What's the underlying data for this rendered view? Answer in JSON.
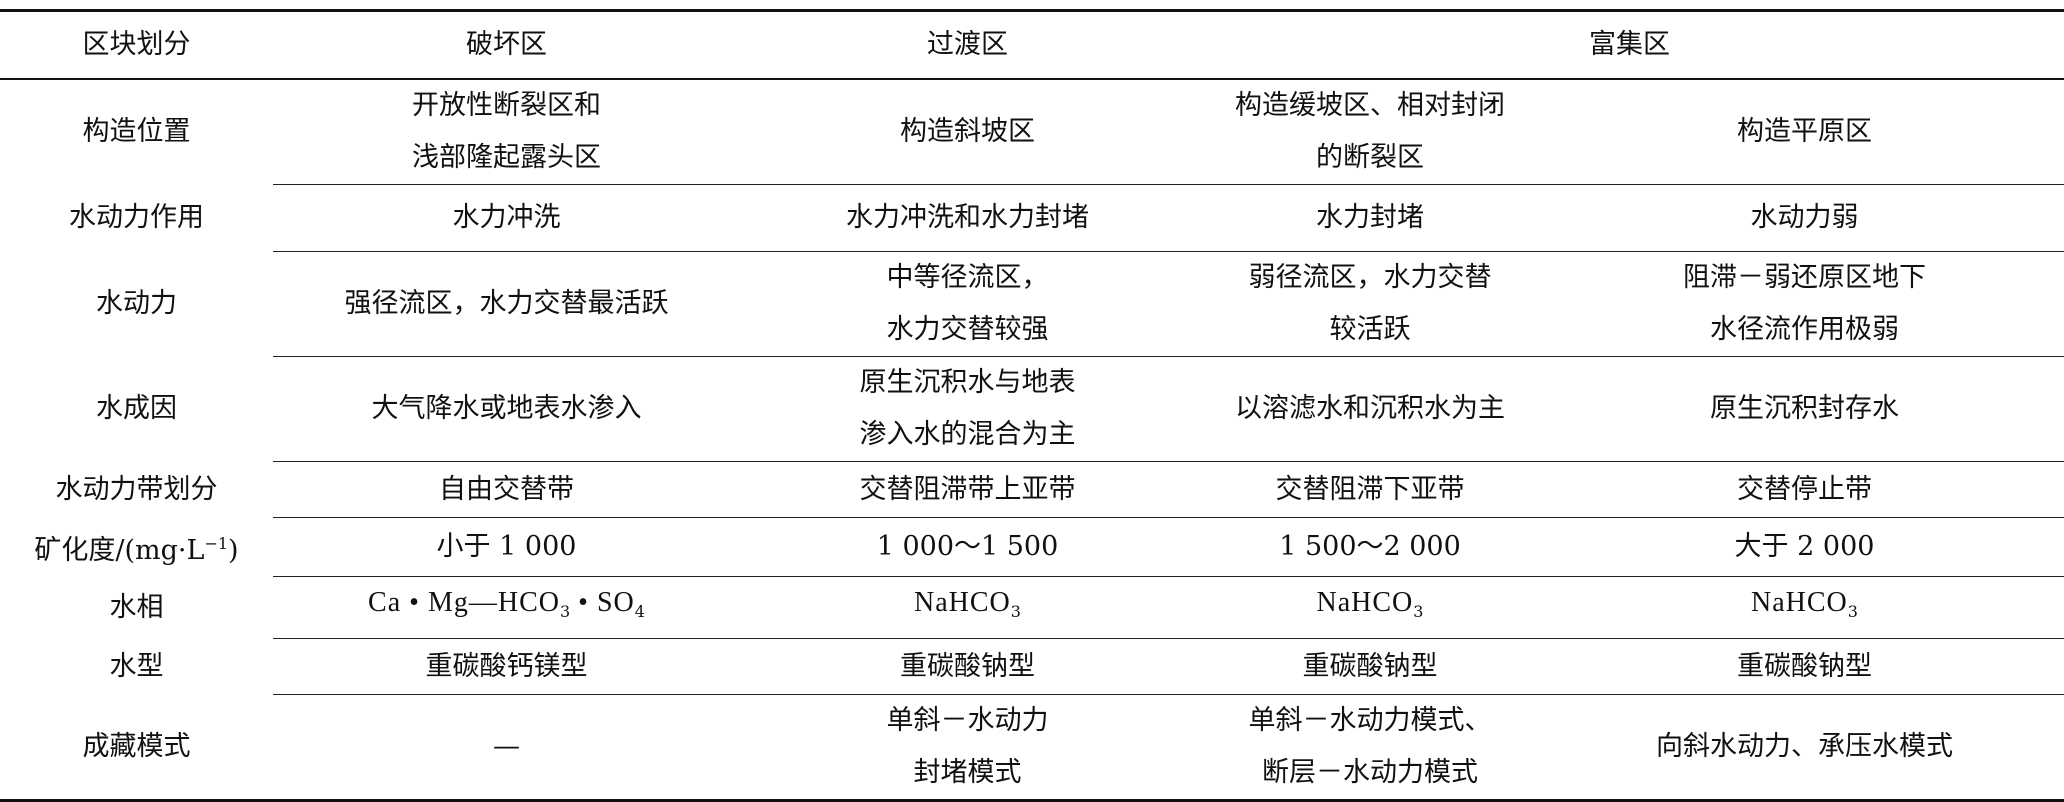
{
  "header": [
    "区块划分",
    "破坏区",
    "过渡区",
    "富集区"
  ],
  "rows": [
    {
      "label": "构造位置",
      "cells": [
        [
          "开放性断裂区和",
          "浅部隆起露头区"
        ],
        [
          "构造斜坡区"
        ],
        [
          "构造缓坡区、相对封闭",
          "的断裂区"
        ],
        [
          "构造平原区"
        ]
      ]
    },
    {
      "label": "水动力作用",
      "cells": [
        [
          "水力冲洗"
        ],
        [
          "水力冲洗和水力封堵"
        ],
        [
          "水力封堵"
        ],
        [
          "水动力弱"
        ]
      ]
    },
    {
      "label": "水动力",
      "cells": [
        [
          "强径流区，水力交替最活跃"
        ],
        [
          "中等径流区，",
          "水力交替较强"
        ],
        [
          "弱径流区，水力交替",
          "较活跃"
        ],
        [
          "阻滞－弱还原区地下",
          "水径流作用极弱"
        ]
      ]
    },
    {
      "label": "水成因",
      "cells": [
        [
          "大气降水或地表水渗入"
        ],
        [
          "原生沉积水与地表",
          "渗入水的混合为主"
        ],
        [
          "以溶滤水和沉积水为主"
        ],
        [
          "原生沉积封存水"
        ]
      ]
    },
    {
      "label": "水动力带划分",
      "cells": [
        [
          "自由交替带"
        ],
        [
          "交替阻滞带上亚带"
        ],
        [
          "交替阻滞下亚带"
        ],
        [
          "交替停止带"
        ]
      ]
    },
    {
      "label": "矿化度/(mg·L⁻¹)",
      "label_parts": {
        "pre": "矿化度/(mg·L",
        "sup": "−1",
        "post": ")"
      },
      "cells": [
        [
          "小于 1 000"
        ],
        [
          "1 000～1 500"
        ],
        [
          "1 500～2 000"
        ],
        [
          "大于 2 000"
        ]
      ]
    },
    {
      "label": "水相",
      "cells": [
        [
          "Ca·Mg—HCO₃·SO₄"
        ],
        [
          "NaHCO₃"
        ],
        [
          "NaHCO₃"
        ],
        [
          "NaHCO₃"
        ]
      ],
      "cell_parts": [
        [
          {
            "t": "Ca • Mg—HCO"
          },
          {
            "sub": "3"
          },
          {
            "t": " • SO"
          },
          {
            "sub": "4"
          }
        ],
        [
          {
            "t": "NaHCO"
          },
          {
            "sub": "3"
          }
        ],
        [
          {
            "t": "NaHCO"
          },
          {
            "sub": "3"
          }
        ],
        [
          {
            "t": "NaHCO"
          },
          {
            "sub": "3"
          }
        ]
      ]
    },
    {
      "label": "水型",
      "cells": [
        [
          "重碳酸钙镁型"
        ],
        [
          "重碳酸钠型"
        ],
        [
          "重碳酸钠型"
        ],
        [
          "重碳酸钠型"
        ]
      ]
    },
    {
      "label": "成藏模式",
      "cells": [
        [
          "—"
        ],
        [
          "单斜－水动力",
          "封堵模式"
        ],
        [
          "单斜－水动力模式、",
          "断层－水动力模式"
        ],
        [
          "向斜水动力、承压水模式"
        ]
      ]
    }
  ]
}
